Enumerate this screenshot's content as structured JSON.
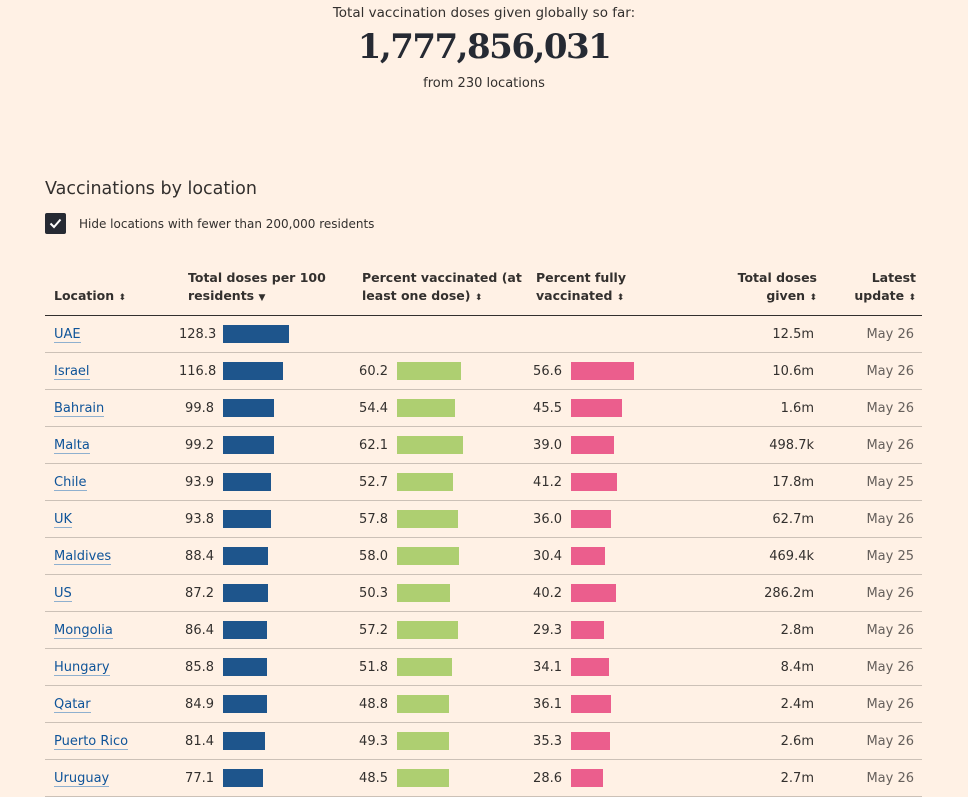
{
  "hero": {
    "label": "Total vaccination doses given globally so far:",
    "total": "1,777,856,031",
    "sub": "from 230 locations"
  },
  "section_title": "Vaccinations by location",
  "filter": {
    "label": "Hide locations with fewer than 200,000 residents",
    "checked": true
  },
  "colors": {
    "doses_per_100": "#1e558c",
    "pct_vaccinated": "#aecf71",
    "pct_fully": "#eb5e8d",
    "background": "#fff1e5",
    "link": "#0f5499"
  },
  "table": {
    "headers": {
      "location": "Location",
      "doses_per_100_line1": "Total doses per 100",
      "doses_per_100_line2": "residents",
      "pct_vaccinated_line1": "Percent vaccinated (at",
      "pct_vaccinated_line2": "least one dose)",
      "pct_fully_line1": "Percent fully",
      "pct_fully_line2": "vaccinated",
      "total_doses_line1": "Total doses",
      "total_doses_line2": "given",
      "update_line1": "Latest",
      "update_line2": "update"
    },
    "rows": [
      {
        "location": "UAE",
        "per100": "128.3",
        "pct": "",
        "full": "",
        "doses": "12.5m",
        "update": "May 26"
      },
      {
        "location": "Israel",
        "per100": "116.8",
        "pct": "60.2",
        "full": "56.6",
        "doses": "10.6m",
        "update": "May 26"
      },
      {
        "location": "Bahrain",
        "per100": "99.8",
        "pct": "54.4",
        "full": "45.5",
        "doses": "1.6m",
        "update": "May 26"
      },
      {
        "location": "Malta",
        "per100": "99.2",
        "pct": "62.1",
        "full": "39.0",
        "doses": "498.7k",
        "update": "May 26"
      },
      {
        "location": "Chile",
        "per100": "93.9",
        "pct": "52.7",
        "full": "41.2",
        "doses": "17.8m",
        "update": "May 25"
      },
      {
        "location": "UK",
        "per100": "93.8",
        "pct": "57.8",
        "full": "36.0",
        "doses": "62.7m",
        "update": "May 26"
      },
      {
        "location": "Maldives",
        "per100": "88.4",
        "pct": "58.0",
        "full": "30.4",
        "doses": "469.4k",
        "update": "May 25"
      },
      {
        "location": "US",
        "per100": "87.2",
        "pct": "50.3",
        "full": "40.2",
        "doses": "286.2m",
        "update": "May 26"
      },
      {
        "location": "Mongolia",
        "per100": "86.4",
        "pct": "57.2",
        "full": "29.3",
        "doses": "2.8m",
        "update": "May 26"
      },
      {
        "location": "Hungary",
        "per100": "85.8",
        "pct": "51.8",
        "full": "34.1",
        "doses": "8.4m",
        "update": "May 26"
      },
      {
        "location": "Qatar",
        "per100": "84.9",
        "pct": "48.8",
        "full": "36.1",
        "doses": "2.4m",
        "update": "May 26"
      },
      {
        "location": "Puerto Rico",
        "per100": "81.4",
        "pct": "49.3",
        "full": "35.3",
        "doses": "2.6m",
        "update": "May 26"
      },
      {
        "location": "Uruguay",
        "per100": "77.1",
        "pct": "48.5",
        "full": "28.6",
        "doses": "2.7m",
        "update": "May 26"
      }
    ]
  }
}
